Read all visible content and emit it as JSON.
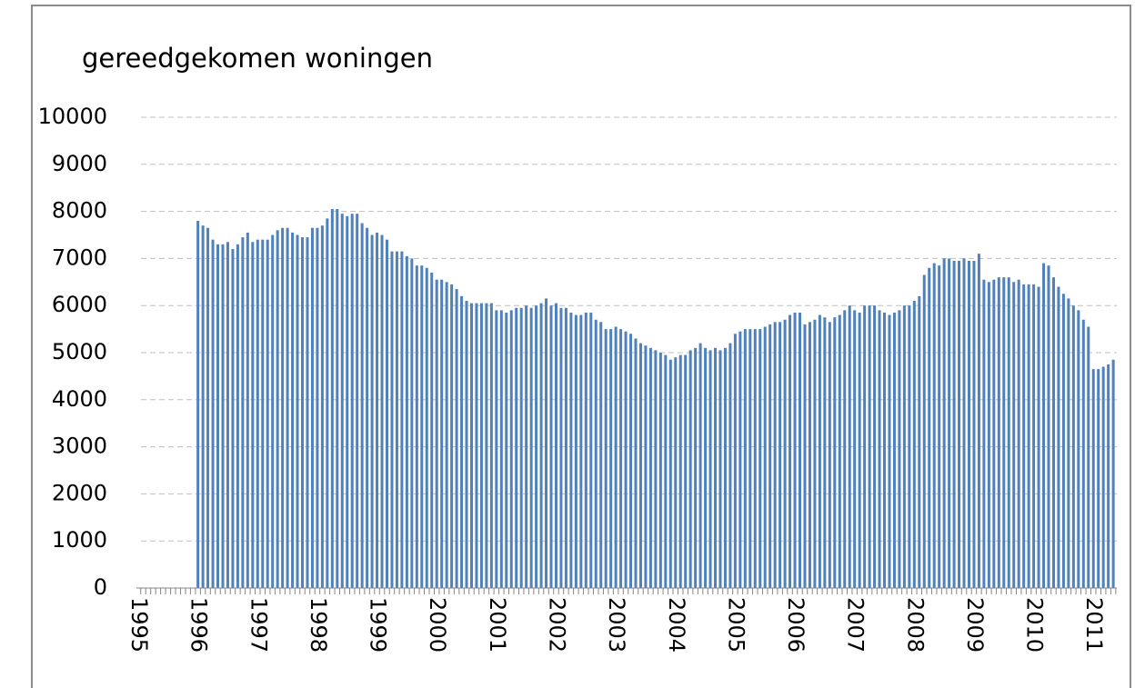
{
  "chart_data": {
    "type": "bar",
    "title": "gereedgekomen woningen",
    "color": "#4f81bd",
    "grid": true,
    "ylim": [
      0,
      10000
    ],
    "yticks": [
      0,
      1000,
      2000,
      3000,
      4000,
      5000,
      6000,
      7000,
      8000,
      9000,
      10000
    ],
    "categories": [
      "1995",
      null,
      null,
      null,
      null,
      null,
      null,
      null,
      null,
      null,
      null,
      null,
      "1996",
      null,
      null,
      null,
      null,
      null,
      null,
      null,
      null,
      null,
      null,
      null,
      "1997",
      null,
      null,
      null,
      null,
      null,
      null,
      null,
      null,
      null,
      null,
      null,
      "1998",
      null,
      null,
      null,
      null,
      null,
      null,
      null,
      null,
      null,
      null,
      null,
      "1999",
      null,
      null,
      null,
      null,
      null,
      null,
      null,
      null,
      null,
      null,
      null,
      "2000",
      null,
      null,
      null,
      null,
      null,
      null,
      null,
      null,
      null,
      null,
      null,
      "2001",
      null,
      null,
      null,
      null,
      null,
      null,
      null,
      null,
      null,
      null,
      null,
      "2002",
      null,
      null,
      null,
      null,
      null,
      null,
      null,
      null,
      null,
      null,
      null,
      "2003",
      null,
      null,
      null,
      null,
      null,
      null,
      null,
      null,
      null,
      null,
      null,
      "2004",
      null,
      null,
      null,
      null,
      null,
      null,
      null,
      null,
      null,
      null,
      null,
      "2005",
      null,
      null,
      null,
      null,
      null,
      null,
      null,
      null,
      null,
      null,
      null,
      "2006",
      null,
      null,
      null,
      null,
      null,
      null,
      null,
      null,
      null,
      null,
      null,
      "2007",
      null,
      null,
      null,
      null,
      null,
      null,
      null,
      null,
      null,
      null,
      null,
      "2008",
      null,
      null,
      null,
      null,
      null,
      null,
      null,
      null,
      null,
      null,
      null,
      "2009",
      null,
      null,
      null,
      null,
      null,
      null,
      null,
      null,
      null,
      null,
      null,
      "2010",
      null,
      null,
      null,
      null,
      null,
      null,
      null,
      null,
      null,
      null,
      null,
      "2011",
      null,
      null,
      null,
      null
    ],
    "values": [
      null,
      null,
      null,
      null,
      null,
      null,
      null,
      null,
      null,
      null,
      null,
      null,
      7800,
      7700,
      7650,
      7400,
      7300,
      7300,
      7350,
      7200,
      7300,
      7450,
      7550,
      7350,
      7400,
      7400,
      7400,
      7500,
      7600,
      7650,
      7650,
      7550,
      7500,
      7450,
      7450,
      7650,
      7650,
      7700,
      7850,
      8050,
      8050,
      7950,
      7900,
      7950,
      7950,
      7750,
      7650,
      7500,
      7550,
      7500,
      7400,
      7150,
      7150,
      7150,
      7050,
      7000,
      6850,
      6850,
      6800,
      6700,
      6550,
      6550,
      6500,
      6450,
      6350,
      6200,
      6100,
      6050,
      6050,
      6050,
      6050,
      6050,
      5900,
      5900,
      5850,
      5900,
      5950,
      5950,
      6000,
      5950,
      6000,
      6050,
      6150,
      6000,
      6050,
      5950,
      5950,
      5850,
      5800,
      5800,
      5850,
      5850,
      5700,
      5650,
      5500,
      5500,
      5550,
      5500,
      5450,
      5400,
      5300,
      5200,
      5150,
      5100,
      5050,
      5000,
      4950,
      4850,
      4900,
      4950,
      4950,
      5050,
      5100,
      5200,
      5100,
      5050,
      5100,
      5050,
      5100,
      5200,
      5400,
      5450,
      5500,
      5500,
      5500,
      5500,
      5550,
      5600,
      5650,
      5650,
      5700,
      5800,
      5850,
      5850,
      5600,
      5650,
      5700,
      5800,
      5750,
      5650,
      5750,
      5800,
      5900,
      6000,
      5900,
      5850,
      6000,
      6000,
      6000,
      5900,
      5850,
      5800,
      5850,
      5900,
      6000,
      6000,
      6100,
      6200,
      6650,
      6800,
      6900,
      6850,
      7000,
      7000,
      6950,
      6950,
      7000,
      6950,
      6950,
      7100,
      6550,
      6500,
      6550,
      6600,
      6600,
      6600,
      6500,
      6550,
      6450,
      6450,
      6450,
      6400,
      6900,
      6850,
      6600,
      6400,
      6250,
      6150,
      6000,
      5900,
      5700,
      5550,
      4650,
      4650,
      4700,
      4750,
      4850
    ]
  }
}
